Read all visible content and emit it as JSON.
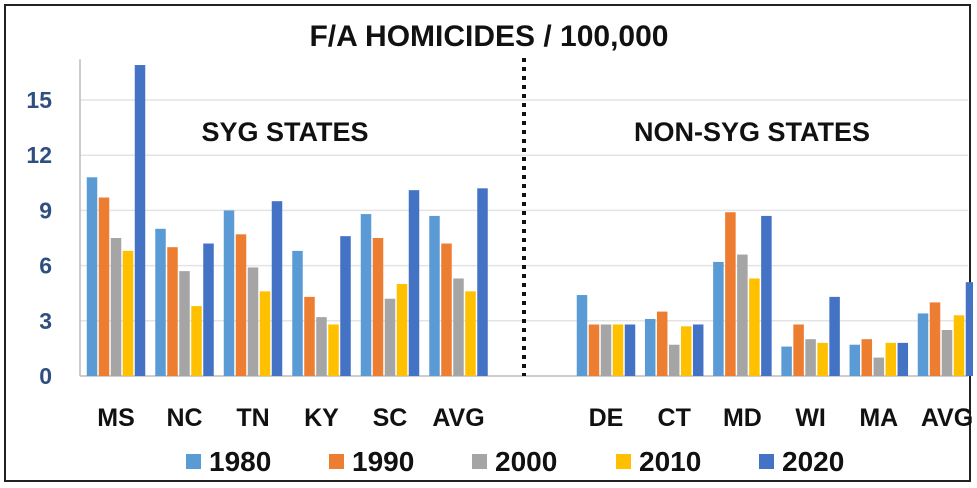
{
  "chart_data": {
    "type": "bar",
    "title": "F/A HOMICIDES / 100,000",
    "group_labels": [
      "SYG STATES",
      "NON-SYG STATES"
    ],
    "categories": [
      "MS",
      "NC",
      "TN",
      "KY",
      "SC",
      "AVG",
      "DE",
      "CT",
      "MD",
      "WI",
      "MA",
      "AVG"
    ],
    "category_groups": [
      0,
      0,
      0,
      0,
      0,
      0,
      1,
      1,
      1,
      1,
      1,
      1
    ],
    "ylim": [
      0,
      17
    ],
    "yticks": [
      0,
      3,
      6,
      9,
      12,
      15
    ],
    "ytick_labels": [
      "0",
      "3",
      "6",
      "9",
      "12",
      "15"
    ],
    "grid": "horizontal",
    "legend_position": "bottom",
    "colors": [
      "#5b9bd5",
      "#ed7d31",
      "#a5a5a5",
      "#ffc000",
      "#4472c4"
    ],
    "series": [
      {
        "name": "1980",
        "values": [
          10.8,
          8.0,
          9.0,
          6.8,
          8.8,
          8.7,
          4.4,
          3.1,
          6.2,
          1.6,
          1.7,
          3.4
        ]
      },
      {
        "name": "1990",
        "values": [
          9.7,
          7.0,
          7.7,
          4.3,
          7.5,
          7.2,
          2.8,
          3.5,
          8.9,
          2.8,
          2.0,
          4.0
        ]
      },
      {
        "name": "2000",
        "values": [
          7.5,
          5.7,
          5.9,
          3.2,
          4.2,
          5.3,
          2.8,
          1.7,
          6.6,
          2.0,
          1.0,
          2.5
        ]
      },
      {
        "name": "2010",
        "values": [
          6.8,
          3.8,
          4.6,
          2.8,
          5.0,
          4.6,
          2.8,
          2.7,
          5.3,
          1.8,
          1.8,
          3.3
        ]
      },
      {
        "name": "2020",
        "values": [
          16.9,
          7.2,
          9.5,
          7.6,
          10.1,
          10.2,
          2.8,
          2.8,
          8.7,
          4.3,
          1.8,
          5.1
        ]
      }
    ]
  }
}
